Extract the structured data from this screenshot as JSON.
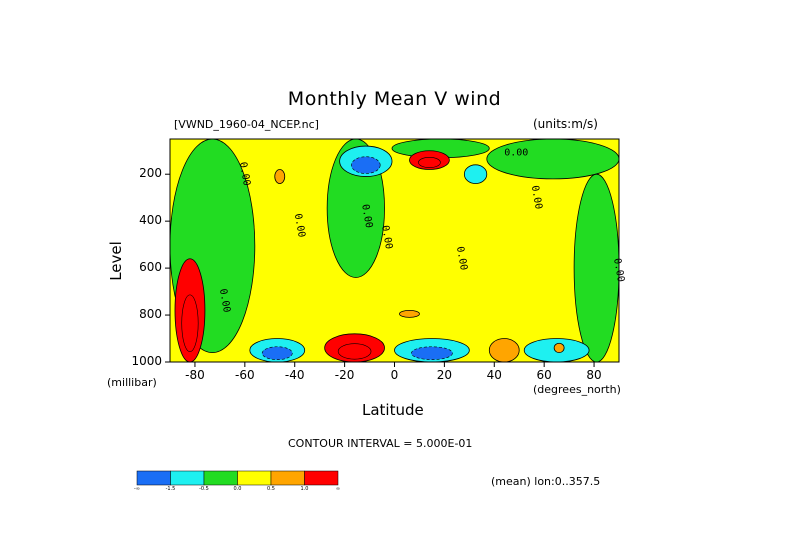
{
  "chart_data": {
    "type": "heatmap",
    "title": "Monthly Mean V wind",
    "dataset": "[VWND_1960-04_NCEP.nc]",
    "units": "(units:m/s)",
    "xlabel": "Latitude",
    "xunit": "(degrees_north)",
    "ylabel": "Level",
    "yunit": "(millibar)",
    "xlim": [
      -90,
      90
    ],
    "ylim": [
      1000,
      50
    ],
    "y_inverted": true,
    "x_ticks": [
      -80,
      -60,
      -40,
      -20,
      0,
      20,
      40,
      60,
      80
    ],
    "y_ticks": [
      200,
      400,
      600,
      800,
      1000
    ],
    "contour_interval_text": "CONTOUR INTERVAL = 5.000E-01",
    "mean_text": "(mean) lon:0..357.5",
    "contour_labels": [
      "0.00",
      "0.00",
      "0.00",
      "0.00",
      "0.00",
      "0.00",
      "0.00",
      "0.00",
      "0.00"
    ],
    "colorbar": {
      "levels": [
        "-∞",
        "-1.5",
        "-0.5",
        "0.0",
        "0.5",
        "1.0",
        "∞"
      ],
      "colors": [
        "#1a6ef5",
        "#1ef0f0",
        "#22dc22",
        "#ffff00",
        "#ffa500",
        "#ff0000"
      ]
    },
    "fields": {
      "background": "#ffff00",
      "positive_regions": [
        {
          "lat": [
            -88,
            -76
          ],
          "lev": [
            560,
            1000
          ],
          "value": 2.0
        },
        {
          "lat": [
            -28,
            -4
          ],
          "lev": [
            880,
            1000
          ],
          "value": 1.5
        },
        {
          "lat": [
            6,
            22
          ],
          "lev": [
            100,
            180
          ],
          "value": 1.2
        },
        {
          "lat": [
            38,
            50
          ],
          "lev": [
            900,
            1000
          ],
          "value": 0.6
        },
        {
          "lat": [
            -48,
            -44
          ],
          "lev": [
            180,
            240
          ],
          "value": 0.6
        },
        {
          "lat": [
            64,
            68
          ],
          "lev": [
            920,
            960
          ],
          "value": 0.6
        },
        {
          "lat": [
            2,
            10
          ],
          "lev": [
            780,
            810
          ],
          "value": 0.6
        }
      ],
      "negative_regions": [
        {
          "lat": [
            -90,
            -56
          ],
          "lev": [
            50,
            960
          ],
          "value": -0.4
        },
        {
          "lat": [
            -27,
            -4
          ],
          "lev": [
            50,
            640
          ],
          "value": -0.3
        },
        {
          "lat": [
            -22,
            -1
          ],
          "lev": [
            80,
            210
          ],
          "value": -1.0
        },
        {
          "lat": [
            -58,
            -36
          ],
          "lev": [
            900,
            1000
          ],
          "value": -1.2
        },
        {
          "lat": [
            0,
            30
          ],
          "lev": [
            900,
            1000
          ],
          "value": -1.4
        },
        {
          "lat": [
            28,
            37
          ],
          "lev": [
            160,
            240
          ],
          "value": -0.6
        },
        {
          "lat": [
            -1,
            38
          ],
          "lev": [
            50,
            130
          ],
          "value": -0.3
        },
        {
          "lat": [
            37,
            90
          ],
          "lev": [
            50,
            220
          ],
          "value": -0.3
        },
        {
          "lat": [
            72,
            90
          ],
          "lev": [
            200,
            1000
          ],
          "value": -0.4
        },
        {
          "lat": [
            52,
            78
          ],
          "lev": [
            900,
            1000
          ],
          "value": -0.8
        }
      ]
    }
  }
}
